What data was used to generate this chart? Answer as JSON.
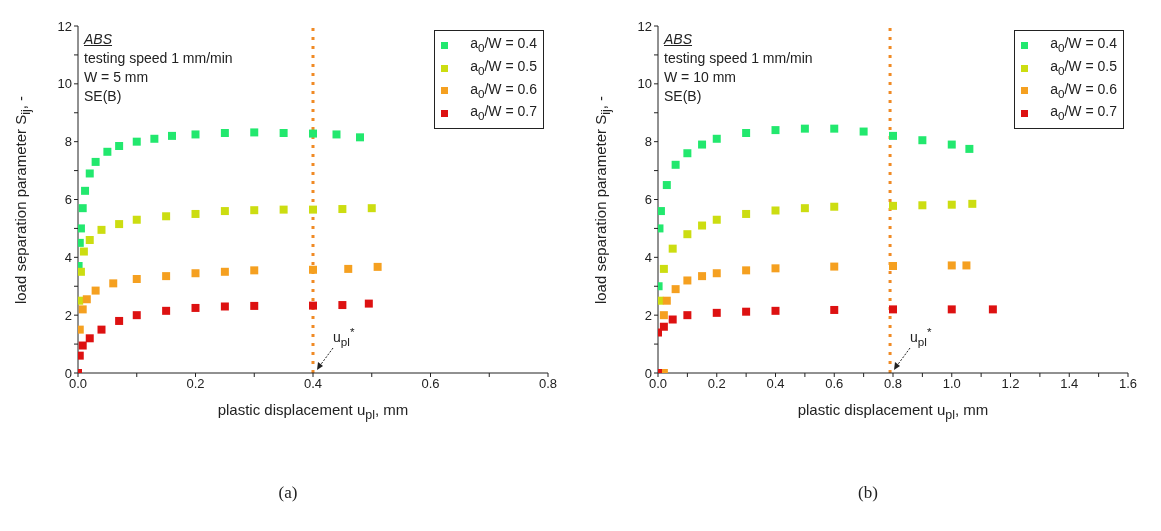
{
  "chart_data": [
    {
      "type": "scatter",
      "xlabel": "plastic displacement u$_{pl}$, mm",
      "ylabel": "load separation parameter S$_{ij}$, -",
      "annotations": [
        "ABS",
        "testing speed 1 mm/min",
        "W = 5 mm",
        "SE(B)",
        "(a)"
      ],
      "xlim": [
        0,
        0.8
      ],
      "xticks": [
        {
          "value": 0,
          "label": "0.0"
        },
        {
          "value": 0.1,
          "label": null
        },
        0.2,
        {
          "value": 0.3,
          "label": null
        },
        0.4,
        {
          "value": 0.5,
          "label": null
        },
        0.6,
        {
          "value": 0.7,
          "label": null
        },
        0.8
      ],
      "ylim": [
        0,
        12
      ],
      "yticks": [
        0,
        {
          "value": 1,
          "label": null
        },
        2,
        {
          "value": 3,
          "label": null
        },
        4,
        {
          "value": 5,
          "label": null
        },
        6,
        {
          "value": 7,
          "label": null
        },
        8,
        {
          "value": 9,
          "label": null
        },
        10,
        {
          "value": 11,
          "label": null
        },
        12
      ],
      "legend": "top right",
      "marker": "square",
      "ref_lines": [
        {
          "axis": "x",
          "value": 0.4,
          "label": "u$_{pl}$$^{*}$",
          "color": "#f08a24",
          "line_style": "dotted"
        }
      ],
      "series": [
        {
          "name": "a$_{0}$/W = 0.4",
          "color": "#22e86e",
          "x": [
            0.001,
            0.003,
            0.005,
            0.008,
            0.012,
            0.02,
            0.03,
            0.05,
            0.07,
            0.1,
            0.13,
            0.16,
            0.2,
            0.25,
            0.3,
            0.35,
            0.4,
            0.44,
            0.48
          ],
          "values": [
            3.7,
            4.5,
            5,
            5.7,
            6.3,
            6.9,
            7.3,
            7.65,
            7.85,
            8,
            8.1,
            8.2,
            8.25,
            8.3,
            8.32,
            8.3,
            8.28,
            8.25,
            8.15
          ]
        },
        {
          "name": "a$_{0}$/W = 0.5",
          "color": "#ccdd11",
          "x": [
            0.002,
            0.005,
            0.01,
            0.02,
            0.04,
            0.07,
            0.1,
            0.15,
            0.2,
            0.25,
            0.3,
            0.35,
            0.4,
            0.45,
            0.5
          ],
          "values": [
            2.5,
            3.5,
            4.2,
            4.6,
            4.95,
            5.15,
            5.3,
            5.42,
            5.5,
            5.6,
            5.63,
            5.65,
            5.65,
            5.67,
            5.7
          ]
        },
        {
          "name": "a$_{0}$/W = 0.6",
          "color": "#f5a020",
          "x": [
            0.003,
            0.008,
            0.015,
            0.03,
            0.06,
            0.1,
            0.15,
            0.2,
            0.25,
            0.3,
            0.4,
            0.46,
            0.51
          ],
          "values": [
            1.5,
            2.2,
            2.55,
            2.85,
            3.1,
            3.25,
            3.35,
            3.45,
            3.5,
            3.55,
            3.57,
            3.6,
            3.67
          ]
        },
        {
          "name": "a$_{0}$/W = 0.7",
          "color": "#dd1111",
          "x": [
            0,
            0.003,
            0.008,
            0.02,
            0.04,
            0.07,
            0.1,
            0.15,
            0.2,
            0.25,
            0.3,
            0.4,
            0.45,
            0.495
          ],
          "values": [
            0,
            0.6,
            0.95,
            1.2,
            1.5,
            1.8,
            2,
            2.15,
            2.25,
            2.3,
            2.32,
            2.33,
            2.35,
            2.4
          ]
        }
      ]
    },
    {
      "type": "scatter",
      "xlabel": "plastic displacement u$_{pl}$, mm",
      "ylabel": "load separation parameter S$_{ij}$, -",
      "annotations": [
        "ABS",
        "testing speed 1 mm/min",
        "W = 10 mm",
        "SE(B)",
        "(b)"
      ],
      "xlim": [
        0,
        1.6
      ],
      "xticks": [
        {
          "value": 0,
          "label": "0.0"
        },
        {
          "value": 0.1,
          "label": null
        },
        0.2,
        {
          "value": 0.3,
          "label": null
        },
        0.4,
        {
          "value": 0.5,
          "label": null
        },
        0.6,
        {
          "value": 0.7,
          "label": null
        },
        0.8,
        {
          "value": 0.9,
          "label": null
        },
        {
          "value": 1,
          "label": "1.0"
        },
        {
          "value": 1.1,
          "label": null
        },
        1.2,
        {
          "value": 1.3,
          "label": null
        },
        1.4,
        {
          "value": 1.5,
          "label": null
        },
        1.6
      ],
      "ylim": [
        0,
        12
      ],
      "yticks": [
        0,
        {
          "value": 1,
          "label": null
        },
        2,
        {
          "value": 3,
          "label": null
        },
        4,
        {
          "value": 5,
          "label": null
        },
        6,
        {
          "value": 7,
          "label": null
        },
        8,
        {
          "value": 9,
          "label": null
        },
        10,
        {
          "value": 11,
          "label": null
        },
        12
      ],
      "legend": "top right",
      "marker": "square",
      "ref_lines": [
        {
          "axis": "x",
          "value": 0.79,
          "label": "u$_{pl}$$^{*}$",
          "color": "#f08a24",
          "line_style": "dotted"
        }
      ],
      "series": [
        {
          "name": "a$_{0}$/W = 0.4",
          "color": "#22e86e",
          "x": [
            0.002,
            0.005,
            0.01,
            0.03,
            0.06,
            0.1,
            0.15,
            0.2,
            0.3,
            0.4,
            0.5,
            0.6,
            0.7,
            0.8,
            0.9,
            1,
            1.06
          ],
          "values": [
            3,
            5,
            5.6,
            6.5,
            7.2,
            7.6,
            7.9,
            8.1,
            8.3,
            8.4,
            8.45,
            8.45,
            8.35,
            8.2,
            8.05,
            7.9,
            7.75
          ]
        },
        {
          "name": "a$_{0}$/W = 0.5",
          "color": "#ccdd11",
          "x": [
            0.005,
            0.02,
            0.05,
            0.1,
            0.15,
            0.2,
            0.3,
            0.4,
            0.5,
            0.6,
            0.8,
            0.9,
            1,
            1.07
          ],
          "values": [
            2.5,
            3.6,
            4.3,
            4.8,
            5.1,
            5.3,
            5.5,
            5.62,
            5.7,
            5.75,
            5.78,
            5.8,
            5.82,
            5.85
          ]
        },
        {
          "name": "a$_{0}$/W = 0.6",
          "color": "#f5a020",
          "x": [
            0.02,
            0.02,
            0.03,
            0.06,
            0.1,
            0.15,
            0.2,
            0.3,
            0.4,
            0.6,
            0.8,
            1,
            1.05
          ],
          "values": [
            0,
            2,
            2.5,
            2.9,
            3.2,
            3.35,
            3.45,
            3.55,
            3.62,
            3.68,
            3.7,
            3.72,
            3.72
          ]
        },
        {
          "name": "a$_{0}$/W = 0.7",
          "color": "#dd1111",
          "x": [
            0,
            0,
            0.02,
            0.05,
            0.1,
            0.2,
            0.3,
            0.4,
            0.6,
            0.8,
            1,
            1.14
          ],
          "values": [
            0,
            1.4,
            1.6,
            1.85,
            2,
            2.08,
            2.12,
            2.15,
            2.18,
            2.2,
            2.2,
            2.2
          ]
        }
      ]
    }
  ]
}
